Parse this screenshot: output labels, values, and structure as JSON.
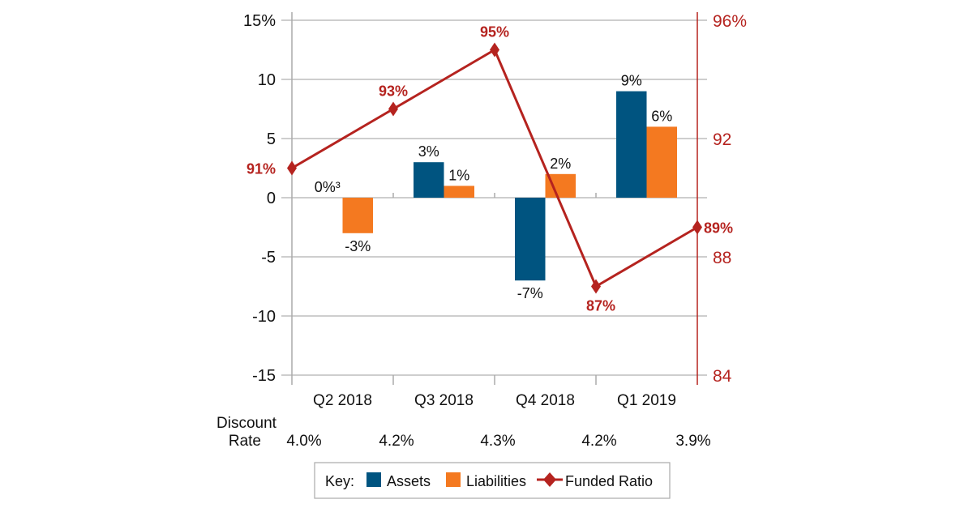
{
  "chart_data": {
    "type": "bar",
    "categories": [
      "Q2 2018",
      "Q3 2018",
      "Q4 2018",
      "Q1 2019"
    ],
    "series": [
      {
        "name": "Assets",
        "values": [
          0,
          3,
          -7,
          9
        ],
        "labels": [
          "0%³",
          "3%",
          "-7%",
          "9%"
        ],
        "color": "#005480",
        "axis": "left"
      },
      {
        "name": "Liabilities",
        "values": [
          -3,
          1,
          2,
          6
        ],
        "labels": [
          "-3%",
          "1%",
          "2%",
          "6%"
        ],
        "color": "#f47920",
        "axis": "left"
      }
    ],
    "line_series": {
      "name": "Funded Ratio",
      "color": "#b5231f",
      "values": [
        91,
        93,
        95,
        87,
        89
      ],
      "labels": [
        "91%",
        "93%",
        "95%",
        "87%",
        "89%"
      ],
      "axis": "right"
    },
    "left_axis": {
      "ylim": [
        -15,
        15
      ],
      "ticks": [
        "15%",
        "10",
        "5",
        "0",
        "-5",
        "-10",
        "-15"
      ],
      "tick_values": [
        15,
        10,
        5,
        0,
        -5,
        -10,
        -15
      ]
    },
    "right_axis": {
      "ylim": [
        84,
        96
      ],
      "ticks": [
        "96%",
        "92",
        "88",
        "84"
      ],
      "tick_values": [
        96,
        92,
        88,
        84
      ],
      "color": "#b5231f"
    },
    "grid": true,
    "discount_rate": {
      "label_line1": "Discount",
      "label_line2": "Rate",
      "values": [
        "4.0%",
        "4.2%",
        "4.3%",
        "4.2%",
        "3.9%"
      ]
    },
    "legend": {
      "placement": "bottom",
      "key_label": "Key:",
      "items": [
        "Assets",
        "Liabilities",
        "Funded Ratio"
      ]
    }
  }
}
